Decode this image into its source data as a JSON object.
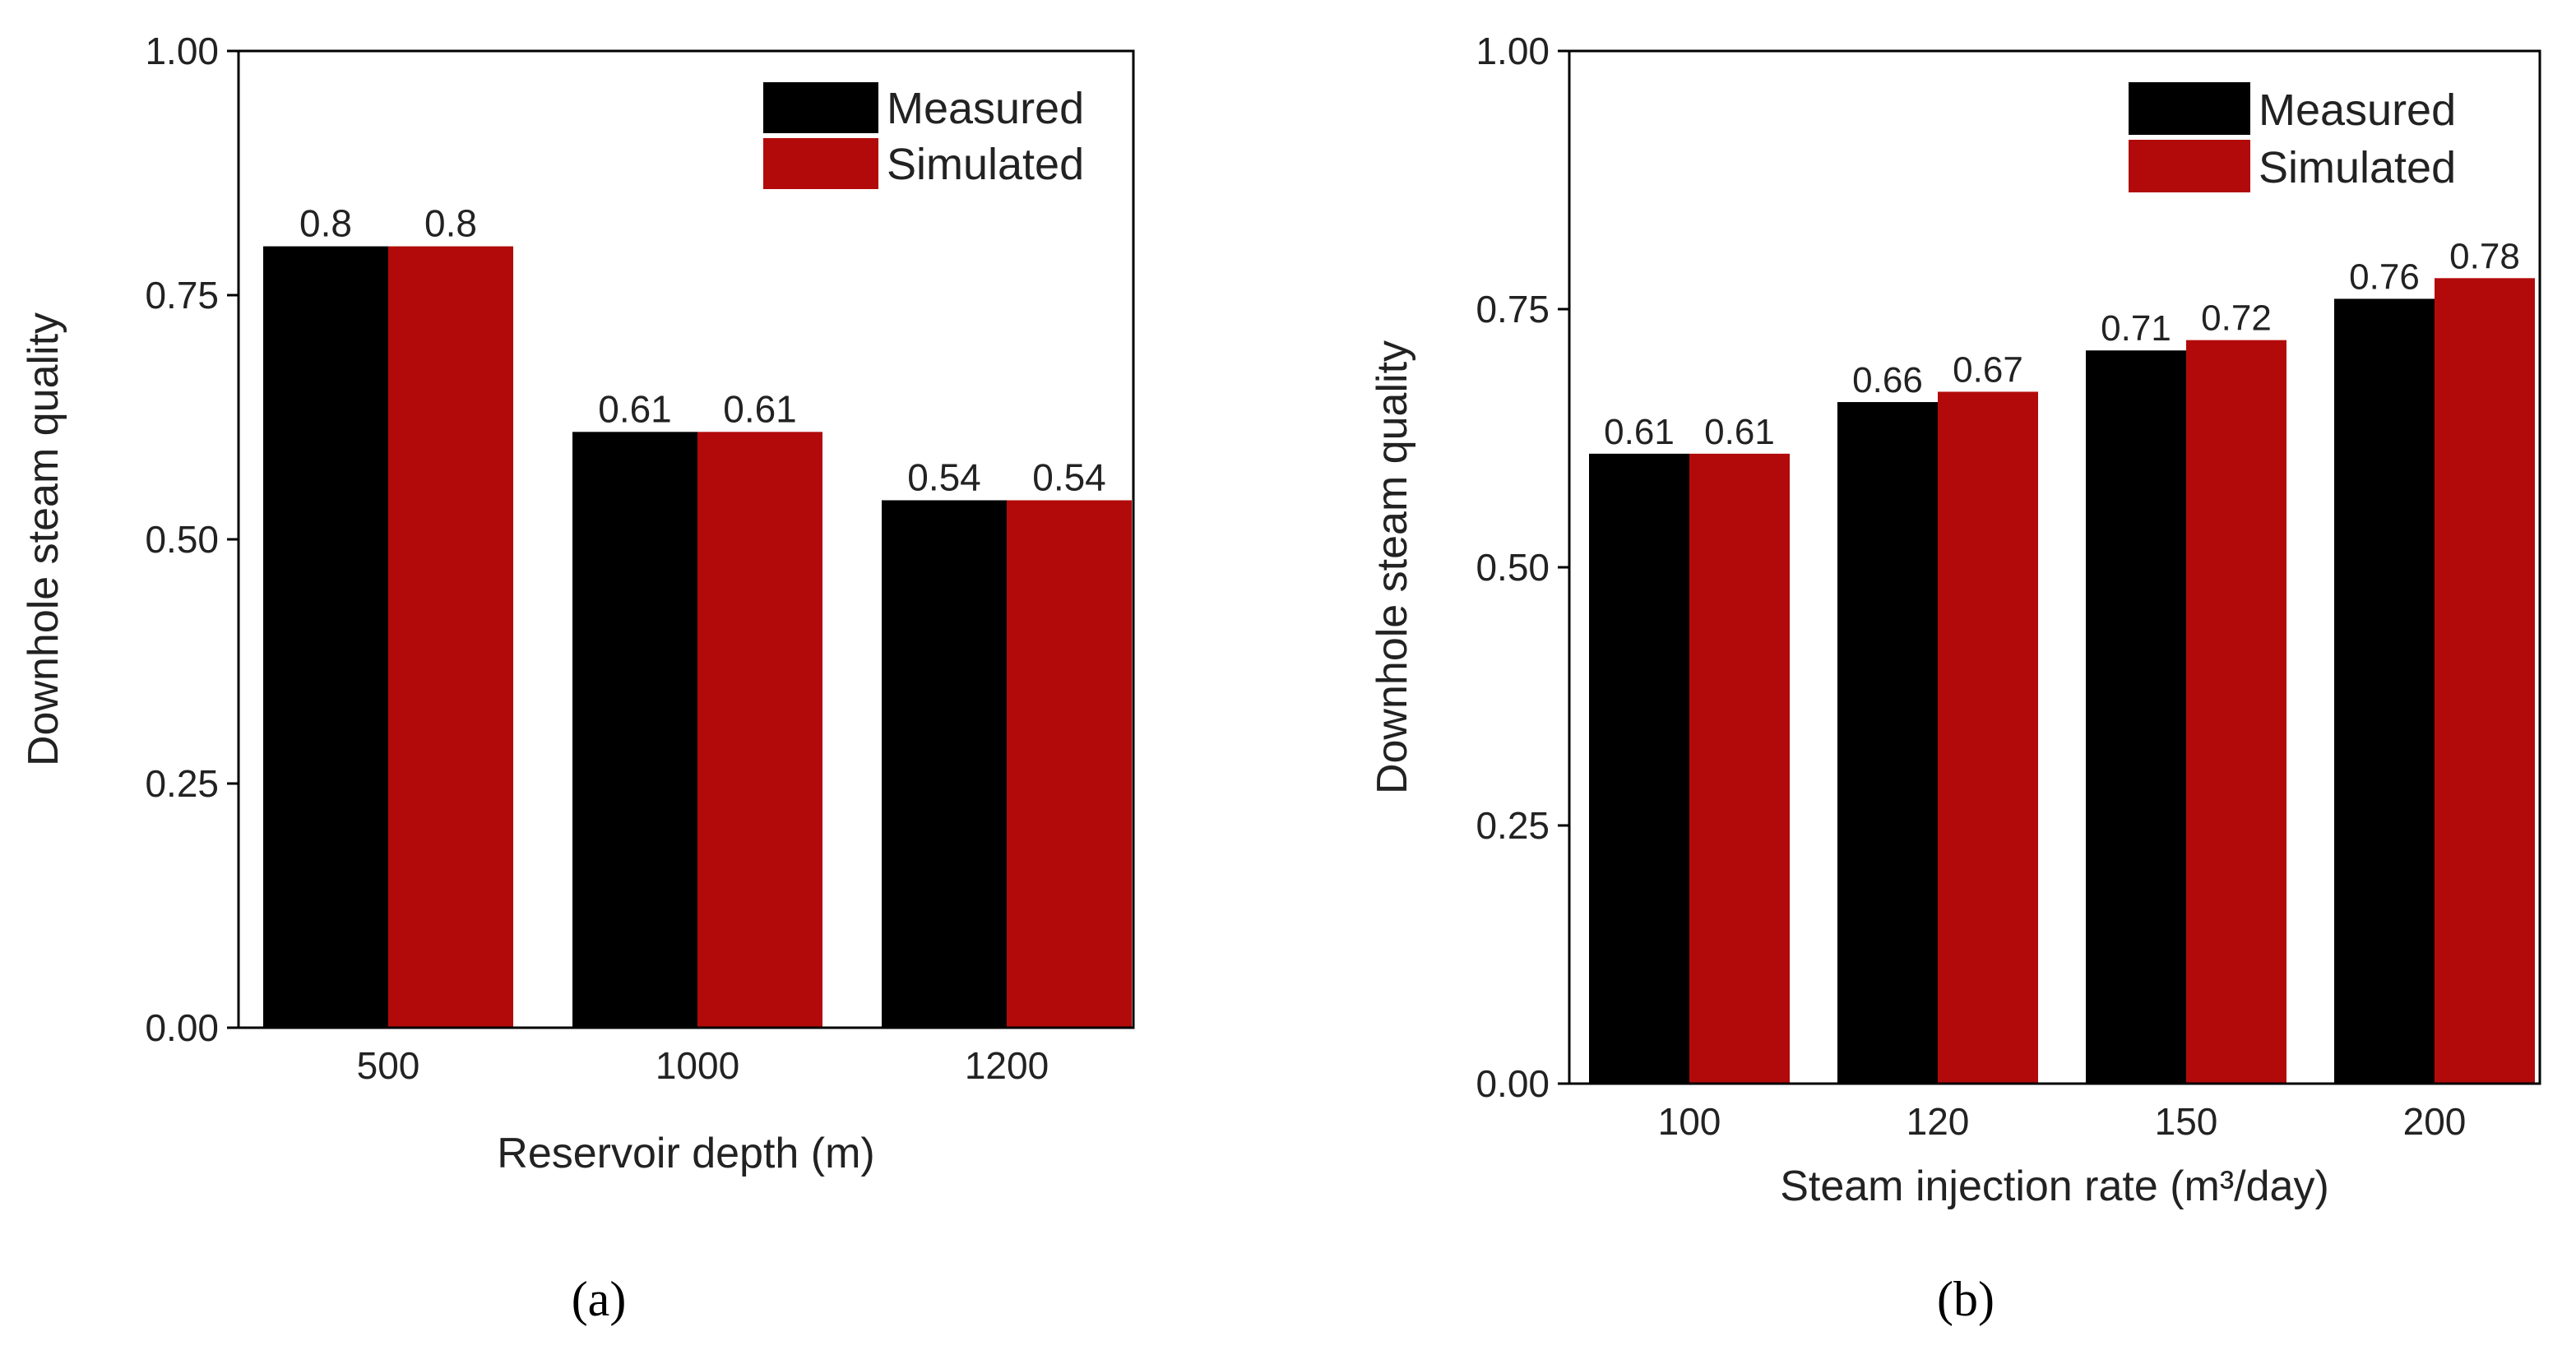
{
  "colors": {
    "measured": "#000000",
    "simulated": "#b20a0a",
    "axis": "#000000"
  },
  "legend": [
    "Measured",
    "Simulated"
  ],
  "chart_data": [
    {
      "id": "a",
      "type": "bar",
      "panel_label": "(a)",
      "title": "",
      "xlabel": "Reservoir depth (m)",
      "ylabel": "Downhole steam quality",
      "categories": [
        "500",
        "1000",
        "1200"
      ],
      "ylim": [
        0,
        1
      ],
      "yticks": [
        "0.00",
        "0.25",
        "0.50",
        "0.75",
        "1.00"
      ],
      "legend_position": "top-right",
      "series": [
        {
          "name": "Measured",
          "values": [
            0.8,
            0.61,
            0.54
          ],
          "labels": [
            "0.8",
            "0.61",
            "0.54"
          ]
        },
        {
          "name": "Simulated",
          "values": [
            0.8,
            0.61,
            0.54
          ],
          "labels": [
            "0.8",
            "0.61",
            "0.54"
          ]
        }
      ]
    },
    {
      "id": "b",
      "type": "bar",
      "panel_label": "(b)",
      "title": "",
      "xlabel": "Steam injection rate (m³/day)",
      "ylabel": "Downhole steam quality",
      "categories": [
        "100",
        "120",
        "150",
        "200"
      ],
      "ylim": [
        0,
        1
      ],
      "yticks": [
        "0.00",
        "0.25",
        "0.50",
        "0.75",
        "1.00"
      ],
      "legend_position": "top-right",
      "series": [
        {
          "name": "Measured",
          "values": [
            0.61,
            0.66,
            0.71,
            0.76
          ],
          "labels": [
            "0.61",
            "0.66",
            "0.71",
            "0.76"
          ]
        },
        {
          "name": "Simulated",
          "values": [
            0.61,
            0.67,
            0.72,
            0.78
          ],
          "labels": [
            "0.61",
            "0.67",
            "0.72",
            "0.78"
          ]
        }
      ]
    }
  ]
}
